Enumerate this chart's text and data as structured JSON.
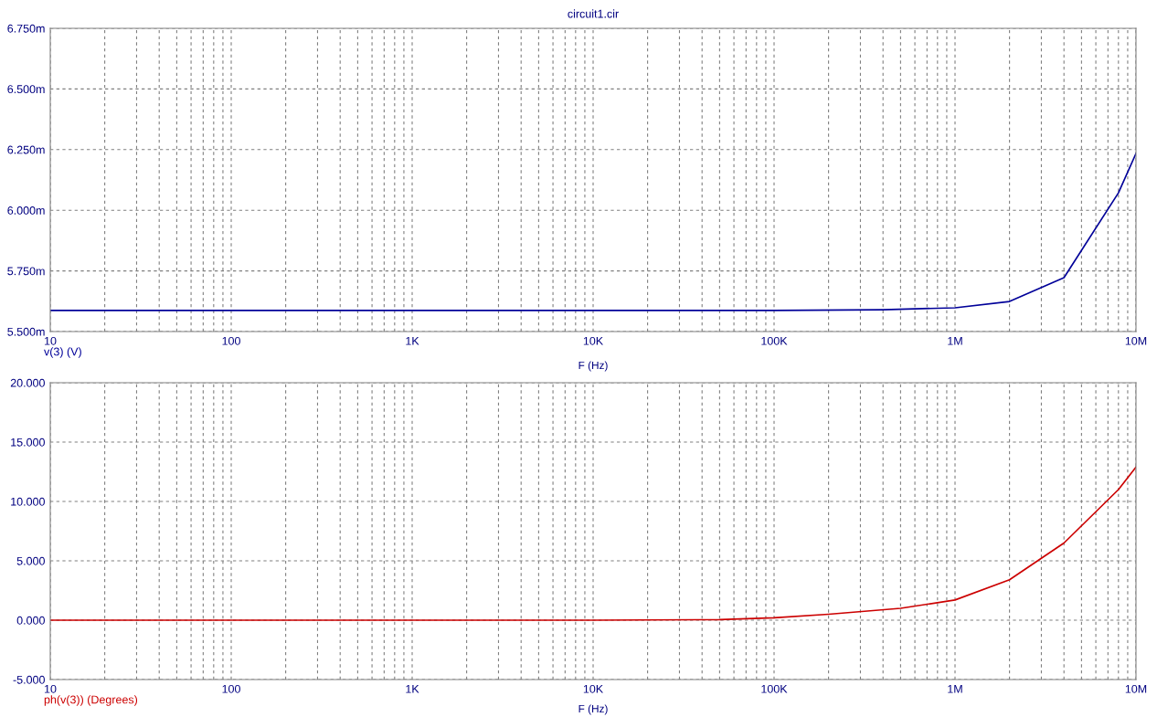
{
  "chart_data": [
    {
      "type": "line",
      "title": "circuit1.cir",
      "xlabel": "F (Hz)",
      "log": "x",
      "grid": true,
      "xlim": [
        10,
        10000000
      ],
      "xticks": [
        {
          "value": 10,
          "label": "10"
        },
        {
          "value": 100,
          "label": "100"
        },
        {
          "value": 1000,
          "label": "1K"
        },
        {
          "value": 10000,
          "label": "10K"
        },
        {
          "value": 100000,
          "label": "100K"
        },
        {
          "value": 1000000,
          "label": "1M"
        },
        {
          "value": 10000000,
          "label": "10M"
        }
      ],
      "ylim": [
        5.5,
        6.75
      ],
      "yticks": [
        {
          "value": 5.5,
          "label": "5.500m"
        },
        {
          "value": 5.75,
          "label": "5.750m"
        },
        {
          "value": 6.0,
          "label": "6.000m"
        },
        {
          "value": 6.25,
          "label": "6.250m"
        },
        {
          "value": 6.5,
          "label": "6.500m"
        },
        {
          "value": 6.75,
          "label": "6.750m"
        }
      ],
      "series": [
        {
          "name": "v(3) (V)",
          "color": "#000099",
          "x": [
            10,
            100,
            1000,
            10000,
            100000,
            400000,
            1000000,
            2000000,
            4000000,
            8000000,
            10000000
          ],
          "values": [
            5.587,
            5.587,
            5.587,
            5.587,
            5.587,
            5.59,
            5.598,
            5.624,
            5.722,
            6.072,
            6.234
          ]
        }
      ]
    },
    {
      "type": "line",
      "xlabel": "F (Hz)",
      "log": "x",
      "grid": true,
      "xlim": [
        10,
        10000000
      ],
      "xticks": [
        {
          "value": 10,
          "label": "10"
        },
        {
          "value": 100,
          "label": "100"
        },
        {
          "value": 1000,
          "label": "1K"
        },
        {
          "value": 10000,
          "label": "10K"
        },
        {
          "value": 100000,
          "label": "100K"
        },
        {
          "value": 1000000,
          "label": "1M"
        },
        {
          "value": 10000000,
          "label": "10M"
        }
      ],
      "ylim": [
        -5,
        20
      ],
      "yticks": [
        {
          "value": -5,
          "label": "-5.000"
        },
        {
          "value": 0,
          "label": "0.000"
        },
        {
          "value": 5,
          "label": "5.000"
        },
        {
          "value": 10,
          "label": "10.000"
        },
        {
          "value": 15,
          "label": "15.000"
        },
        {
          "value": 20,
          "label": "20.000"
        }
      ],
      "series": [
        {
          "name": "ph(v(3)) (Degrees)",
          "color": "#cc0000",
          "x": [
            10,
            100,
            1000,
            10000,
            50000,
            100000,
            200000,
            500000,
            1000000,
            2000000,
            4000000,
            8000000,
            10000000
          ],
          "values": [
            0,
            0,
            0,
            0,
            0.05,
            0.2,
            0.5,
            1.0,
            1.7,
            3.4,
            6.5,
            11.0,
            12.9
          ]
        }
      ]
    }
  ]
}
